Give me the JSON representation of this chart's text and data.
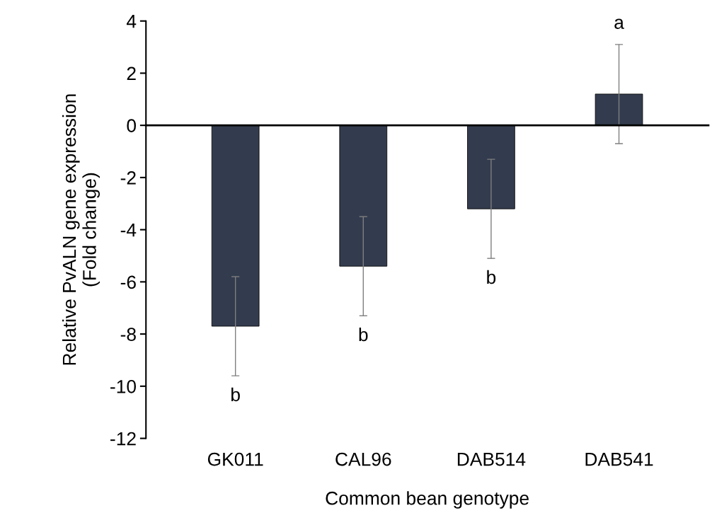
{
  "chart_data": {
    "type": "bar",
    "categories": [
      "GK011",
      "CAL96",
      "DAB514",
      "DAB541"
    ],
    "values": [
      -7.7,
      -5.4,
      -3.2,
      1.2
    ],
    "errors": [
      1.9,
      1.9,
      1.9,
      1.9
    ],
    "color": "#333c4e",
    "xlabel": "Common bean genotype",
    "ylabel": "Relative PvALN gene expression\n(Fold change)",
    "ylim": [
      -12,
      4
    ],
    "yticks": [
      -12,
      -10,
      -8,
      -6,
      -4,
      -2,
      0,
      2,
      4
    ],
    "annotations": [
      "b",
      "b",
      "b",
      "a"
    ]
  }
}
